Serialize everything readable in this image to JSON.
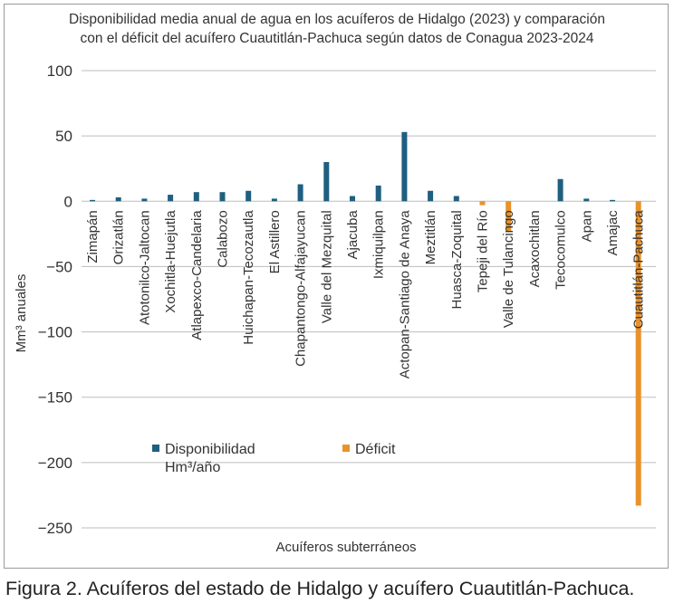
{
  "chart_data": {
    "type": "bar",
    "title_lines": [
      "Disponibilidad media anual de agua en los acuíferos de Hidalgo (2023) y comparación",
      "con el déficit del acuífero Cuautitlán-Pachuca según datos de Conagua 2023-2024"
    ],
    "xlabel": "Acuíferos subterráneos",
    "ylabel": "Mm³ anuales",
    "ylim": [
      -250,
      100
    ],
    "yticks": [
      100,
      50,
      0,
      -50,
      -100,
      -150,
      -200,
      -250
    ],
    "ytick_labels": [
      "100",
      "50",
      "0",
      "−50",
      "−100",
      "−150",
      "−200",
      "−250"
    ],
    "grid": true,
    "legend_position": "lower-left-center",
    "categories": [
      "Zimapán",
      "Orizatlán",
      "Atotonilco-Jaltocan",
      "Xochitla-Huejutla",
      "Atlapexco-Candelaria",
      "Calabozo",
      "Huichapan-Tecozautla",
      "El Astillero",
      "Chapantongo-Alfajayucan",
      "Valle del Mezquital",
      "Ajacuba",
      "Ixmiquilpan",
      "Actopan-Santiago de Anaya",
      "Meztitlán",
      "Huasca-Zoquital",
      "Tepeji del Río",
      "Valle de Tulancingo",
      "Acaxochitlan",
      "Tecocomulco",
      "Apan",
      "Amajac",
      "Cuautitlán-Pachuca"
    ],
    "series": [
      {
        "name": "Disponibilidad Hm³/año",
        "legend_lines": [
          "Disponibilidad",
          "Hm³/año"
        ],
        "color": "#1f5f80",
        "values": [
          1,
          3,
          2,
          5,
          7,
          7,
          8,
          2,
          13,
          30,
          4,
          12,
          53,
          8,
          4,
          0,
          0,
          0,
          17,
          2,
          1,
          0
        ]
      },
      {
        "name": "Déficit",
        "legend_lines": [
          "Déficit"
        ],
        "color": "#e8922a",
        "values": [
          0,
          0,
          0,
          0,
          0,
          0,
          0,
          0,
          0,
          0,
          0,
          0,
          0,
          0,
          0,
          -3,
          -23,
          0,
          0,
          0,
          0,
          -233
        ]
      }
    ]
  },
  "caption": "Figura 2. Acuíferos del estado de Hidalgo y acuífero Cuautitlán-Pachuca."
}
